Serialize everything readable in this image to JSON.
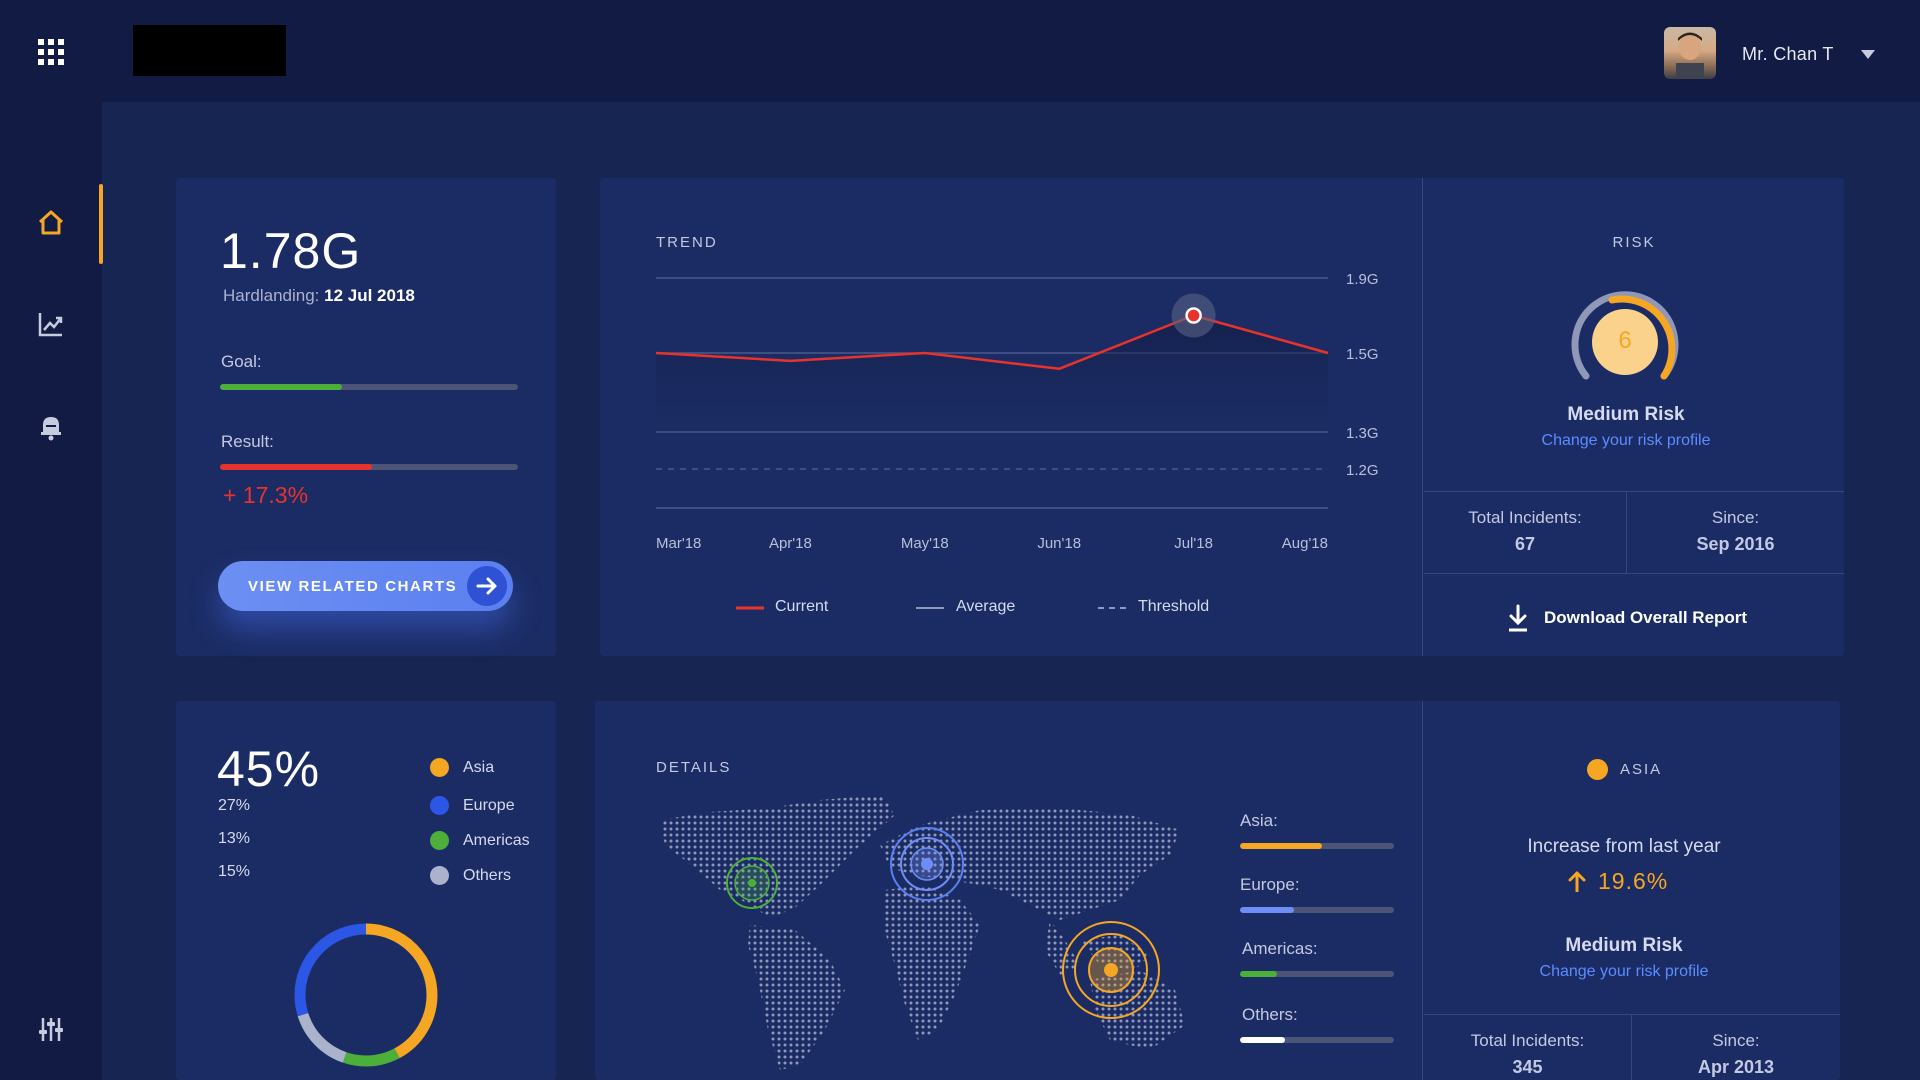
{
  "header": {
    "user_name": "Mr. Chan T"
  },
  "summary": {
    "value": "1.78G",
    "hardlanding_label": "Hardlanding:",
    "hardlanding_date": "12 Jul 2018",
    "goal_label": "Goal:",
    "goal_progress": 0.41,
    "result_label": "Result:",
    "result_progress": 0.51,
    "result_change": "+ 17.3%",
    "cta_label": "VIEW RELATED CHARTS"
  },
  "trend": {
    "title": "TREND",
    "legend": {
      "current": "Current",
      "average": "Average",
      "threshold": "Threshold"
    }
  },
  "risk": {
    "title": "RISK",
    "score": "6",
    "level": "Medium Risk",
    "link": "Change your risk profile",
    "incidents_label": "Total Incidents:",
    "incidents_value": "67",
    "since_label": "Since:",
    "since_value": "Sep 2016",
    "download_label": "Download Overall Report"
  },
  "distribution": {
    "headline": "45%",
    "values": [
      "27%",
      "13%",
      "15%"
    ],
    "legend": [
      {
        "label": "Asia",
        "color": "#f5a623"
      },
      {
        "label": "Europe",
        "color": "#2c56e6"
      },
      {
        "label": "Americas",
        "color": "#4caf3a"
      },
      {
        "label": "Others",
        "color": "#aab2cc"
      }
    ]
  },
  "details": {
    "title": "DETAILS",
    "bars": [
      {
        "label": "Asia:",
        "value": 0.53,
        "color": "#f5a623"
      },
      {
        "label": "Europe:",
        "value": 0.35,
        "color": "#6f8ef5"
      },
      {
        "label": "Americas:",
        "value": 0.24,
        "color": "#4caf3a"
      },
      {
        "label": "Others:",
        "value": 0.29,
        "color": "#ffffff"
      }
    ]
  },
  "region": {
    "name": "ASIA",
    "increase_label": "Increase from last year",
    "increase_value": "19.6%",
    "level": "Medium Risk",
    "link": "Change your risk profile",
    "incidents_label": "Total Incidents:",
    "incidents_value": "345",
    "since_label": "Since:",
    "since_value": "Apr 2013"
  },
  "colors": {
    "accent": "#f5a623",
    "danger": "#e8322b",
    "success": "#4caf3a",
    "link": "#5b8cff"
  },
  "chart_data": {
    "type": "line",
    "title": "TREND",
    "categories": [
      "Mar'18",
      "Apr'18",
      "May'18",
      "Jun'18",
      "Jul'18",
      "Aug'18"
    ],
    "y_ticks": [
      "1.9G",
      "1.5G",
      "1.3G",
      "1.2G"
    ],
    "series": [
      {
        "name": "Current",
        "x": [
          "Mar'18",
          "Apr'18",
          "May'18",
          "Jun'18",
          "Jul'18",
          "Aug'18"
        ],
        "values": [
          1.5,
          1.48,
          1.5,
          1.46,
          1.7,
          1.5
        ]
      },
      {
        "name": "Average",
        "value": 1.5
      },
      {
        "name": "Threshold",
        "value": 1.2
      }
    ],
    "highlight": {
      "x": "Jul'18",
      "value": 1.7
    },
    "grid": true,
    "legend_position": "bottom"
  }
}
